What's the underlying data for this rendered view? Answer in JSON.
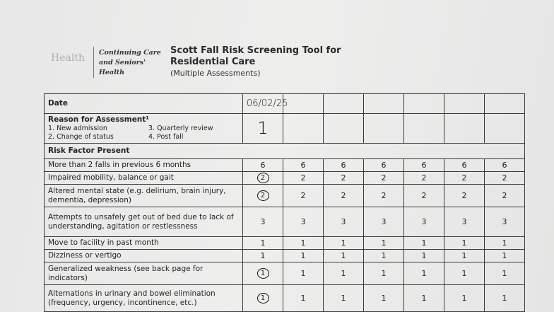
{
  "header": {
    "logo_text": "Health",
    "org_lines": [
      "Continuing Care",
      "and Seniors'",
      "Health"
    ],
    "title_lines": [
      "Scott Fall Risk Screening Tool for",
      "Residential Care"
    ],
    "subtitle": "(Multiple Assessments)"
  },
  "table": {
    "date_label": "Date",
    "dates": [
      "06/02/25",
      "",
      "",
      "",
      "",
      "",
      ""
    ],
    "reason": {
      "label": "Reason for Assessment¹",
      "options": [
        "1. New admission",
        "3. Quarterly review",
        "2. Change of status",
        "4. Post fall"
      ],
      "values": [
        "1",
        "",
        "",
        "",
        "",
        "",
        ""
      ]
    },
    "risk_header": "Risk Factor Present",
    "rows": [
      {
        "label": "More than 2 falls in previous 6 months",
        "scores": [
          "6",
          "6",
          "6",
          "6",
          "6",
          "6",
          "6"
        ],
        "first_circled": false
      },
      {
        "label": "Impaired mobility, balance or gait",
        "scores": [
          "2",
          "2",
          "2",
          "2",
          "2",
          "2",
          "2"
        ],
        "first_circled": true
      },
      {
        "label": "Altered mental state (e.g. delirium, brain injury, dementia, depression)",
        "scores": [
          "2",
          "2",
          "2",
          "2",
          "2",
          "2",
          "2"
        ],
        "first_circled": true
      },
      {
        "label": "Attempts to unsafely get out of bed due to lack of understanding, agitation or restlessness",
        "scores": [
          "3",
          "3",
          "3",
          "3",
          "3",
          "3",
          "3"
        ],
        "first_circled": false
      },
      {
        "label": "Move to facility in past month",
        "scores": [
          "1",
          "1",
          "1",
          "1",
          "1",
          "1",
          "1"
        ],
        "first_circled": false
      },
      {
        "label": "Dizziness or vertigo",
        "scores": [
          "1",
          "1",
          "1",
          "1",
          "1",
          "1",
          "1"
        ],
        "first_circled": false
      },
      {
        "label": "Generalized weakness (see back page for indicators)",
        "scores": [
          "1",
          "1",
          "1",
          "1",
          "1",
          "1",
          "1"
        ],
        "first_circled": true
      },
      {
        "label": "Alternations in urinary and bowel elimination (frequency, urgency, incontinence, etc.)",
        "scores": [
          "1",
          "1",
          "1",
          "1",
          "1",
          "1",
          "1"
        ],
        "first_circled": true
      }
    ]
  }
}
